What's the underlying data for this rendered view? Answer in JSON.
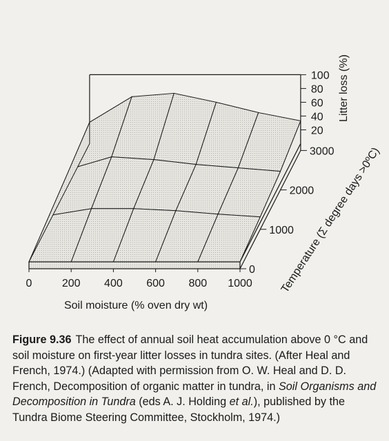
{
  "chart_data": {
    "type": "surface",
    "x": {
      "label": "Soil moisture (% oven dry wt)",
      "ticks": [
        0,
        200,
        400,
        600,
        800,
        1000
      ],
      "range": [
        0,
        1000
      ]
    },
    "y": {
      "label": "Temperature (Σ degree days >0ºC)",
      "ticks": [
        0,
        1000,
        2000,
        3000
      ],
      "range": [
        0,
        3000
      ]
    },
    "z": {
      "label": "Litter loss (%)",
      "ticks": [
        20,
        40,
        60,
        80,
        100
      ],
      "range": [
        0,
        100
      ]
    },
    "grid_x": [
      0,
      200,
      400,
      600,
      800,
      1000
    ],
    "grid_y": [
      0,
      1000,
      2000,
      3000
    ],
    "surface": [
      [
        0,
        0,
        0,
        0,
        0,
        0
      ],
      [
        10,
        20,
        20,
        17,
        12,
        8
      ],
      [
        20,
        38,
        34,
        27,
        22,
        17
      ],
      [
        31,
        68,
        73,
        60,
        45,
        33
      ]
    ]
  },
  "caption": {
    "label": "Figure 9.36",
    "text_1": "The effect of annual soil heat accumulation above 0 °C and soil moisture on first-year litter losses in tundra sites. (After Heal and French, 1974.) (Adapted with permission from O. W. Heal and D. D. French, Decomposition of organic matter in tundra, in ",
    "book": "Soil Organisms and Decomposition in Tundra",
    "text_2": " (eds A. J. Holding ",
    "et_al": "et al.",
    "text_3": "), published by the Tundra Biome Steering Committee, Stockholm, 1974.)"
  }
}
